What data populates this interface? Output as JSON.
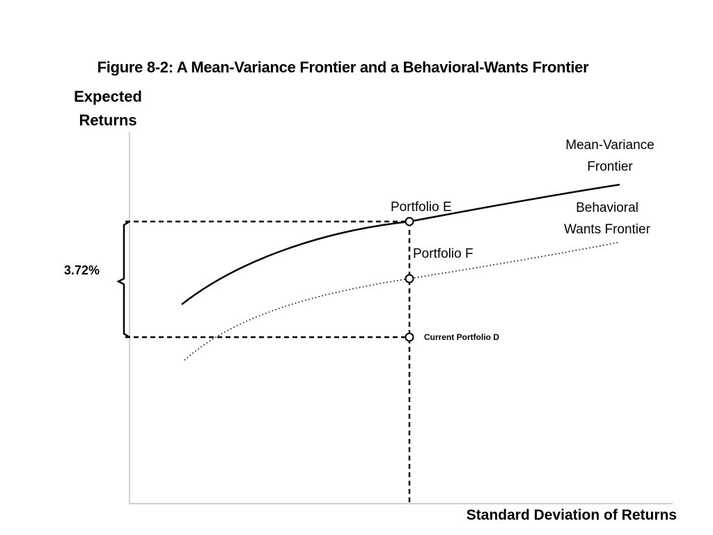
{
  "title": "Figure 8-2: A Mean-Variance Frontier and a Behavioral-Wants Frontier",
  "axes": {
    "y_label_line1": "Expected",
    "y_label_line2": "Returns",
    "x_label": "Standard Deviation of Returns"
  },
  "curves": {
    "mean_variance": {
      "label_line1": "Mean-Variance",
      "label_line2": "Frontier",
      "style": "solid"
    },
    "behavioral": {
      "label_line1": "Behavioral",
      "label_line2": "Wants Frontier",
      "style": "dotted"
    }
  },
  "portfolios": {
    "e": "Portfolio E",
    "f": "Portfolio F",
    "d": "Current Portfolio D"
  },
  "bracket_label": "3.72%",
  "colors": {
    "line": "#000000",
    "axis": "#bfbfbf"
  }
}
